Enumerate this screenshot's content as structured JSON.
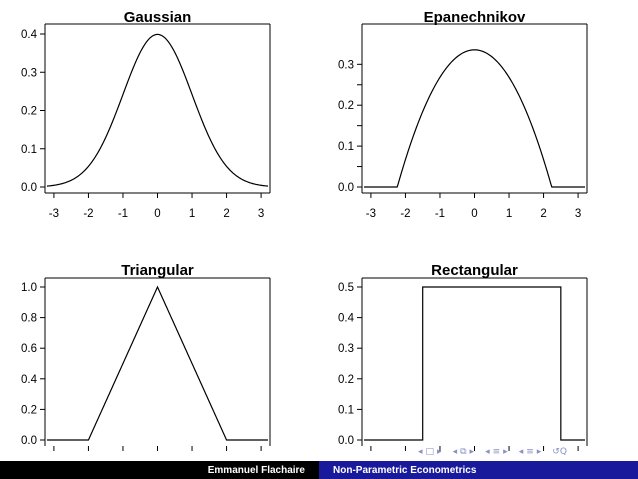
{
  "chart_data": [
    {
      "type": "line",
      "title": "Gaussian",
      "kernel": "gaussian",
      "xlim": [
        -3.2,
        3.2
      ],
      "ylim": [
        0,
        0.4
      ],
      "xticks": [
        -3,
        -2,
        -1,
        0,
        1,
        2,
        3
      ],
      "yticks": [
        0.0,
        0.1,
        0.2,
        0.3,
        0.4
      ],
      "xtick_labels": [
        "-3",
        "-2",
        "-1",
        "0",
        "1",
        "2",
        "3"
      ],
      "ytick_labels": [
        "0.0",
        "0.1",
        "0.2",
        "0.3",
        "0.4"
      ],
      "series": [
        {
          "x": [
            -3.2,
            -2.5,
            -2,
            -1.5,
            -1,
            -0.5,
            0,
            0.5,
            1,
            1.5,
            2,
            2.5,
            3.2
          ],
          "y": [
            0.002,
            0.018,
            0.054,
            0.13,
            0.242,
            0.352,
            0.399,
            0.352,
            0.242,
            0.13,
            0.054,
            0.018,
            0.002
          ]
        }
      ]
    },
    {
      "type": "line",
      "title": "Epanechnikov",
      "kernel": "epanechnikov",
      "xlim": [
        -3.2,
        3.2
      ],
      "ylim": [
        0,
        0.335
      ],
      "xticks": [
        -3,
        -2,
        -1,
        0,
        1,
        2,
        3
      ],
      "yticks": [
        0.0,
        0.1,
        0.2,
        0.3
      ],
      "xtick_labels": [
        "-3",
        "-2",
        "-1",
        "0",
        "1",
        "2",
        "3"
      ],
      "ytick_labels": [
        "0.0",
        "0.1",
        "0.2",
        "0.3"
      ],
      "minor_yticks": [
        0.05,
        0.15,
        0.25
      ],
      "series": [
        {
          "x": [
            -3.2,
            -2.236,
            -1.5,
            -1,
            0,
            1,
            1.5,
            2.236,
            3.2
          ],
          "y": [
            0,
            0,
            0.184,
            0.268,
            0.335,
            0.268,
            0.184,
            0,
            0
          ]
        }
      ]
    },
    {
      "type": "line",
      "title": "Triangular",
      "kernel": "triangular",
      "xlim": [
        -3.2,
        3.2
      ],
      "ylim": [
        0,
        1.0
      ],
      "xticks": [
        -3,
        -2,
        -1,
        0,
        1,
        2,
        3
      ],
      "yticks": [
        0.0,
        0.2,
        0.4,
        0.6,
        0.8,
        1.0
      ],
      "xtick_labels": [],
      "ytick_labels": [
        "0.0",
        "0.2",
        "0.4",
        "0.6",
        "0.8",
        "1.0"
      ],
      "series": [
        {
          "x": [
            -3.2,
            -2,
            0,
            2,
            3.2
          ],
          "y": [
            0,
            0,
            1,
            0,
            0
          ]
        }
      ]
    },
    {
      "type": "line",
      "title": "Rectangular",
      "kernel": "rectangular",
      "xlim": [
        -3.2,
        3.2
      ],
      "ylim": [
        0,
        0.5
      ],
      "xticks": [
        -3,
        -2,
        -1,
        0,
        1,
        2,
        3
      ],
      "yticks": [
        0.0,
        0.1,
        0.2,
        0.3,
        0.4,
        0.5
      ],
      "xtick_labels": [],
      "ytick_labels": [
        "0.0",
        "0.1",
        "0.2",
        "0.3",
        "0.4",
        "0.5"
      ],
      "series": [
        {
          "x": [
            -3.2,
            -1.5,
            -1.5,
            2.5,
            2.5,
            3.2
          ],
          "y": [
            0,
            0,
            0.5,
            0.5,
            0,
            0
          ]
        }
      ]
    }
  ],
  "footer": {
    "author": "Emmanuel Flachaire",
    "title": "Non-Parametric Econometrics"
  },
  "navigation": {
    "icons": [
      "frame-left-icon",
      "frame-right-icon",
      "subsection-left-icon",
      "subsection-right-icon",
      "section-left-icon",
      "section-right-icon",
      "slide-left-icon",
      "slide-right-icon",
      "search-icon"
    ],
    "color": "#8a8fc9"
  },
  "colors": {
    "footer_left": "#000000",
    "footer_right": "#191a9b"
  }
}
